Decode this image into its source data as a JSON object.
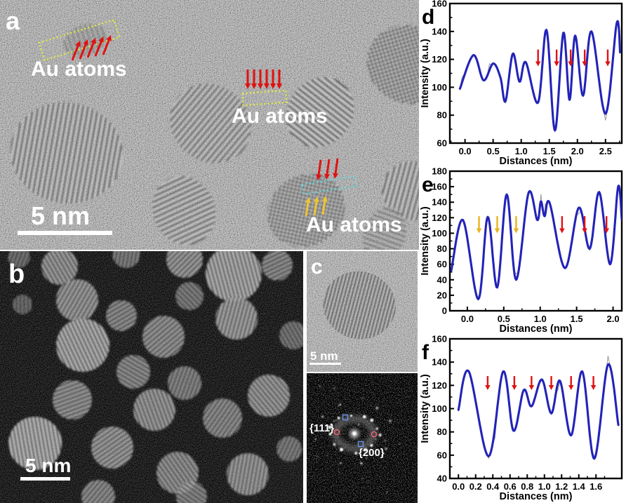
{
  "panel_a": {
    "letter": "a",
    "annotation_1": "Au atoms",
    "annotation_2": "Au atoms",
    "annotation_3": "Au atoms",
    "scale_bar": "5 nm"
  },
  "panel_b": {
    "letter": "b",
    "scale_bar": "5 nm"
  },
  "panel_c": {
    "letter": "c",
    "scale_bar": "5 nm",
    "fft_label_111": "{111}",
    "fft_label_200": "{200}"
  },
  "colors": {
    "curve_blue": "#2323b8",
    "raw_gray": "#8f8f8f",
    "arrow_red": "#e01212",
    "arrow_yellow": "#f0c433",
    "annotation_yellow_dash": "#e4ef3a",
    "annotation_cyan_dash": "#62d8dc",
    "fft_marker_red": "#e46470",
    "fft_marker_blue": "#6b8fd8"
  },
  "chart_data": [
    {
      "panel": "d",
      "type": "line",
      "title": "",
      "xlabel": "Distances (nm)",
      "ylabel": "Intensity (a.u.)",
      "xlim": [
        -0.27,
        2.79
      ],
      "ylim": [
        60,
        160
      ],
      "xticks": [
        0.0,
        0.5,
        1.0,
        1.5,
        2.0,
        2.5
      ],
      "yticks": [
        60,
        80,
        100,
        120,
        140,
        160
      ],
      "grid": false,
      "legend": false,
      "series": [
        {
          "name": "smoothed intensity profile",
          "style": "smooth-blue",
          "points": [
            [
              -0.09,
              99
            ],
            [
              0.15,
              123
            ],
            [
              0.33,
              105
            ],
            [
              0.5,
              117
            ],
            [
              0.63,
              107
            ],
            [
              0.72,
              90
            ],
            [
              0.85,
              124
            ],
            [
              0.97,
              104
            ],
            [
              1.08,
              118
            ],
            [
              1.3,
              89
            ],
            [
              1.45,
              141
            ],
            [
              1.6,
              69
            ],
            [
              1.75,
              139
            ],
            [
              1.86,
              91
            ],
            [
              1.96,
              137
            ],
            [
              2.1,
              94
            ],
            [
              2.25,
              140
            ],
            [
              2.5,
              81
            ],
            [
              2.7,
              146
            ],
            [
              2.76,
              125
            ]
          ]
        },
        {
          "name": "raw intensity trace",
          "style": "noisy-gray",
          "derived_from": "smoothed intensity profile"
        }
      ],
      "arrows": [
        {
          "color": "#e01212",
          "xs": [
            1.3,
            1.63,
            1.88,
            2.13,
            2.54
          ],
          "tail": 127,
          "tip": 115
        }
      ]
    },
    {
      "panel": "e",
      "type": "line",
      "title": "",
      "xlabel": "Distances (nm)",
      "ylabel": "Intensity (a.u.)",
      "xlim": [
        -0.24,
        2.12
      ],
      "ylim": [
        0,
        180
      ],
      "xticks": [
        0.0,
        0.5,
        1.0,
        1.5,
        2.0
      ],
      "yticks": [
        0,
        20,
        40,
        60,
        80,
        100,
        120,
        140,
        160,
        180
      ],
      "grid": false,
      "legend": false,
      "series": [
        {
          "name": "smoothed intensity profile",
          "style": "smooth-blue",
          "points": [
            [
              -0.22,
              52
            ],
            [
              -0.06,
              117
            ],
            [
              0.15,
              15
            ],
            [
              0.28,
              121
            ],
            [
              0.41,
              30
            ],
            [
              0.54,
              150
            ],
            [
              0.67,
              40
            ],
            [
              0.84,
              152
            ],
            [
              0.96,
              117
            ],
            [
              1.01,
              141
            ],
            [
              1.06,
              122
            ],
            [
              1.13,
              139
            ],
            [
              1.34,
              55
            ],
            [
              1.53,
              133
            ],
            [
              1.68,
              80
            ],
            [
              1.81,
              153
            ],
            [
              1.96,
              60
            ],
            [
              2.07,
              160
            ],
            [
              2.12,
              118
            ]
          ]
        },
        {
          "name": "raw intensity trace",
          "style": "noisy-gray",
          "derived_from": "smoothed intensity profile"
        }
      ],
      "arrows": [
        {
          "color": "#e8b41e",
          "xs": [
            0.16,
            0.41,
            0.67
          ],
          "tail": 122,
          "tip": 100
        },
        {
          "color": "#e01212",
          "xs": [
            1.3,
            1.61,
            1.91
          ],
          "tail": 122,
          "tip": 100
        }
      ]
    },
    {
      "panel": "f",
      "type": "line",
      "title": "",
      "xlabel": "Distances (nm)",
      "ylabel": "Intensity (a.u.)",
      "xlim": [
        -0.1,
        1.9
      ],
      "ylim": [
        40,
        160
      ],
      "xticks": [
        0.0,
        0.2,
        0.4,
        0.6,
        0.8,
        1.0,
        1.2,
        1.4,
        1.6
      ],
      "yticks": [
        40,
        60,
        80,
        100,
        120,
        140,
        160
      ],
      "grid": false,
      "legend": false,
      "series": [
        {
          "name": "smoothed intensity profile",
          "style": "smooth-blue",
          "points": [
            [
              0,
              99
            ],
            [
              0.12,
              132
            ],
            [
              0.35,
              59
            ],
            [
              0.52,
              132
            ],
            [
              0.64,
              81
            ],
            [
              0.76,
              116
            ],
            [
              0.85,
              102
            ],
            [
              0.97,
              125
            ],
            [
              1.08,
              96
            ],
            [
              1.18,
              124
            ],
            [
              1.31,
              77
            ],
            [
              1.44,
              132
            ],
            [
              1.58,
              57
            ],
            [
              1.74,
              138
            ],
            [
              1.86,
              86
            ]
          ]
        },
        {
          "name": "raw intensity trace",
          "style": "noisy-gray",
          "derived_from": "smoothed intensity profile"
        }
      ],
      "arrows": [
        {
          "color": "#e01212",
          "xs": [
            0.34,
            0.65,
            0.85,
            1.08,
            1.31,
            1.57
          ],
          "tail": 128,
          "tip": 116
        }
      ]
    }
  ]
}
